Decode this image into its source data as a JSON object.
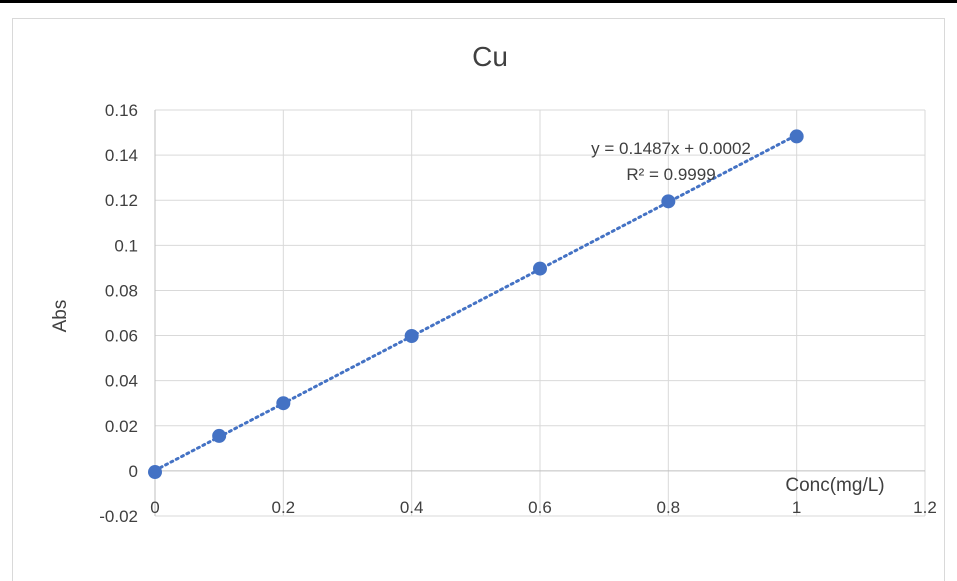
{
  "chart_data": {
    "type": "scatter",
    "title": "Cu",
    "xlabel": "Conc(mg/L)",
    "ylabel": "Abs",
    "xlim": [
      0,
      1.2
    ],
    "ylim": [
      -0.02,
      0.16
    ],
    "x_ticks": [
      "0",
      "0.2",
      "0.4",
      "0.6",
      "0.8",
      "1",
      "1.2"
    ],
    "y_ticks": [
      "-0.02",
      "0",
      "0.02",
      "0.04",
      "0.06",
      "0.08",
      "0.1",
      "0.12",
      "0.14",
      "0.16"
    ],
    "grid": true,
    "series": [
      {
        "x": [
          0,
          0.1,
          0.2,
          0.4,
          0.6,
          0.8,
          1.0
        ],
        "y": [
          -0.0005,
          0.0155,
          0.03,
          0.0598,
          0.0897,
          0.1195,
          0.1483
        ],
        "color": "#4472c4"
      }
    ],
    "trendline": {
      "type": "linear",
      "slope": 0.1487,
      "intercept": 0.0002,
      "style": "dotted",
      "color": "#4472c4",
      "equation": "y = 0.1487x + 0.0002",
      "r_squared": "R² = 0.9999"
    }
  }
}
